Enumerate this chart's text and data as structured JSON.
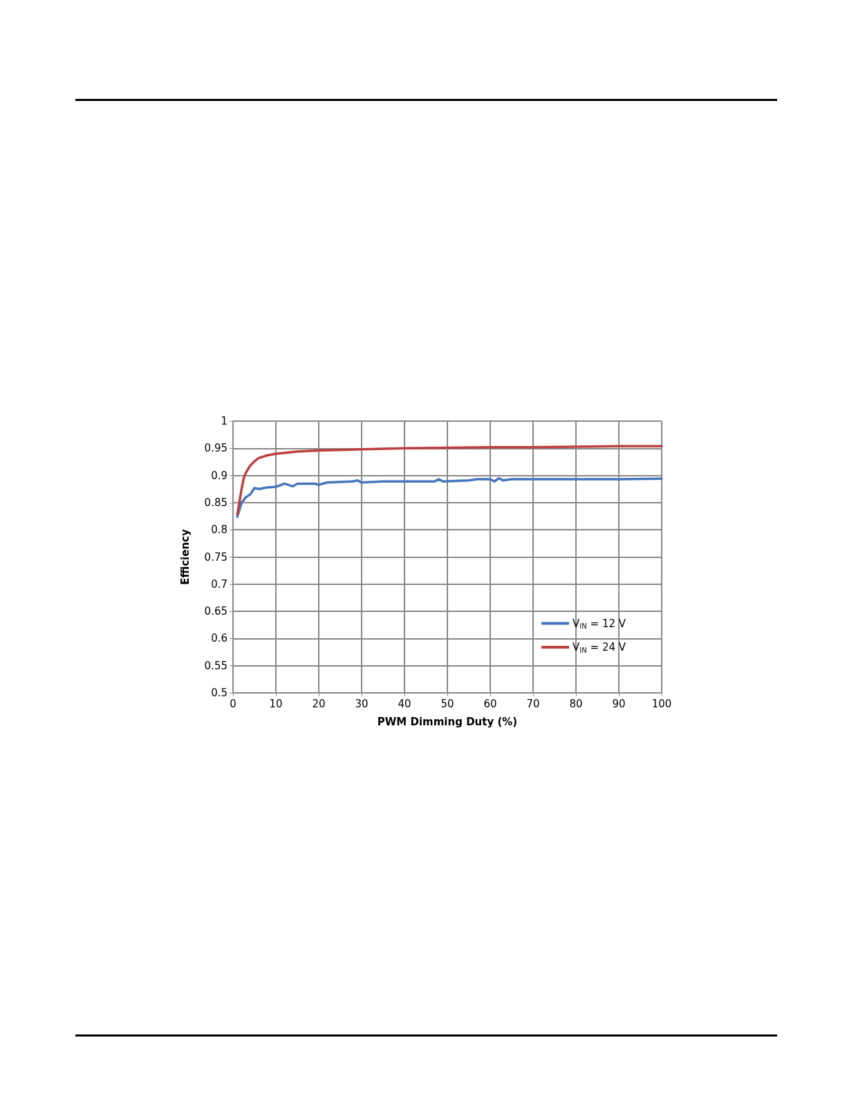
{
  "chart_data": {
    "type": "line",
    "xlabel": "PWM Dimming Duty (%)",
    "ylabel": "Efficiency",
    "xlim": [
      0,
      100
    ],
    "xticks": [
      0,
      10,
      20,
      30,
      40,
      50,
      60,
      70,
      80,
      90,
      100
    ],
    "ylim": [
      0.5,
      1
    ],
    "yticks": [
      0.5,
      0.55,
      0.6,
      0.65,
      0.7,
      0.75,
      0.8,
      0.85,
      0.9,
      0.95,
      1
    ],
    "grid": true,
    "legend": "bottom right",
    "marker": "none",
    "line_style": "solid",
    "series": [
      {
        "name": "V$_{IN}$ = 12 V",
        "color": "#4677bb",
        "x": [
          1,
          2,
          3,
          4,
          5,
          6,
          8,
          10,
          12,
          14,
          15,
          17,
          19,
          20,
          22,
          25,
          28,
          29,
          30,
          35,
          40,
          45,
          47,
          48,
          49,
          55,
          57,
          60,
          61,
          62,
          63,
          65,
          70,
          80,
          90,
          100
        ],
        "values": [
          0.824,
          0.85,
          0.86,
          0.865,
          0.877,
          0.875,
          0.878,
          0.879,
          0.885,
          0.88,
          0.885,
          0.885,
          0.885,
          0.883,
          0.887,
          0.888,
          0.889,
          0.891,
          0.887,
          0.889,
          0.889,
          0.889,
          0.889,
          0.893,
          0.889,
          0.891,
          0.893,
          0.893,
          0.889,
          0.895,
          0.891,
          0.893,
          0.893,
          0.893,
          0.893,
          0.894
        ]
      },
      {
        "name": "V$_{IN}$ = 24 V",
        "color": "#be4040",
        "x": [
          1,
          2,
          2.5,
          3,
          4,
          5,
          6,
          8,
          10,
          15,
          20,
          30,
          40,
          50,
          60,
          70,
          80,
          90,
          100
        ],
        "values": [
          0.828,
          0.875,
          0.895,
          0.905,
          0.918,
          0.926,
          0.932,
          0.937,
          0.94,
          0.944,
          0.946,
          0.948,
          0.95,
          0.951,
          0.952,
          0.952,
          0.953,
          0.954,
          0.954
        ]
      }
    ]
  }
}
